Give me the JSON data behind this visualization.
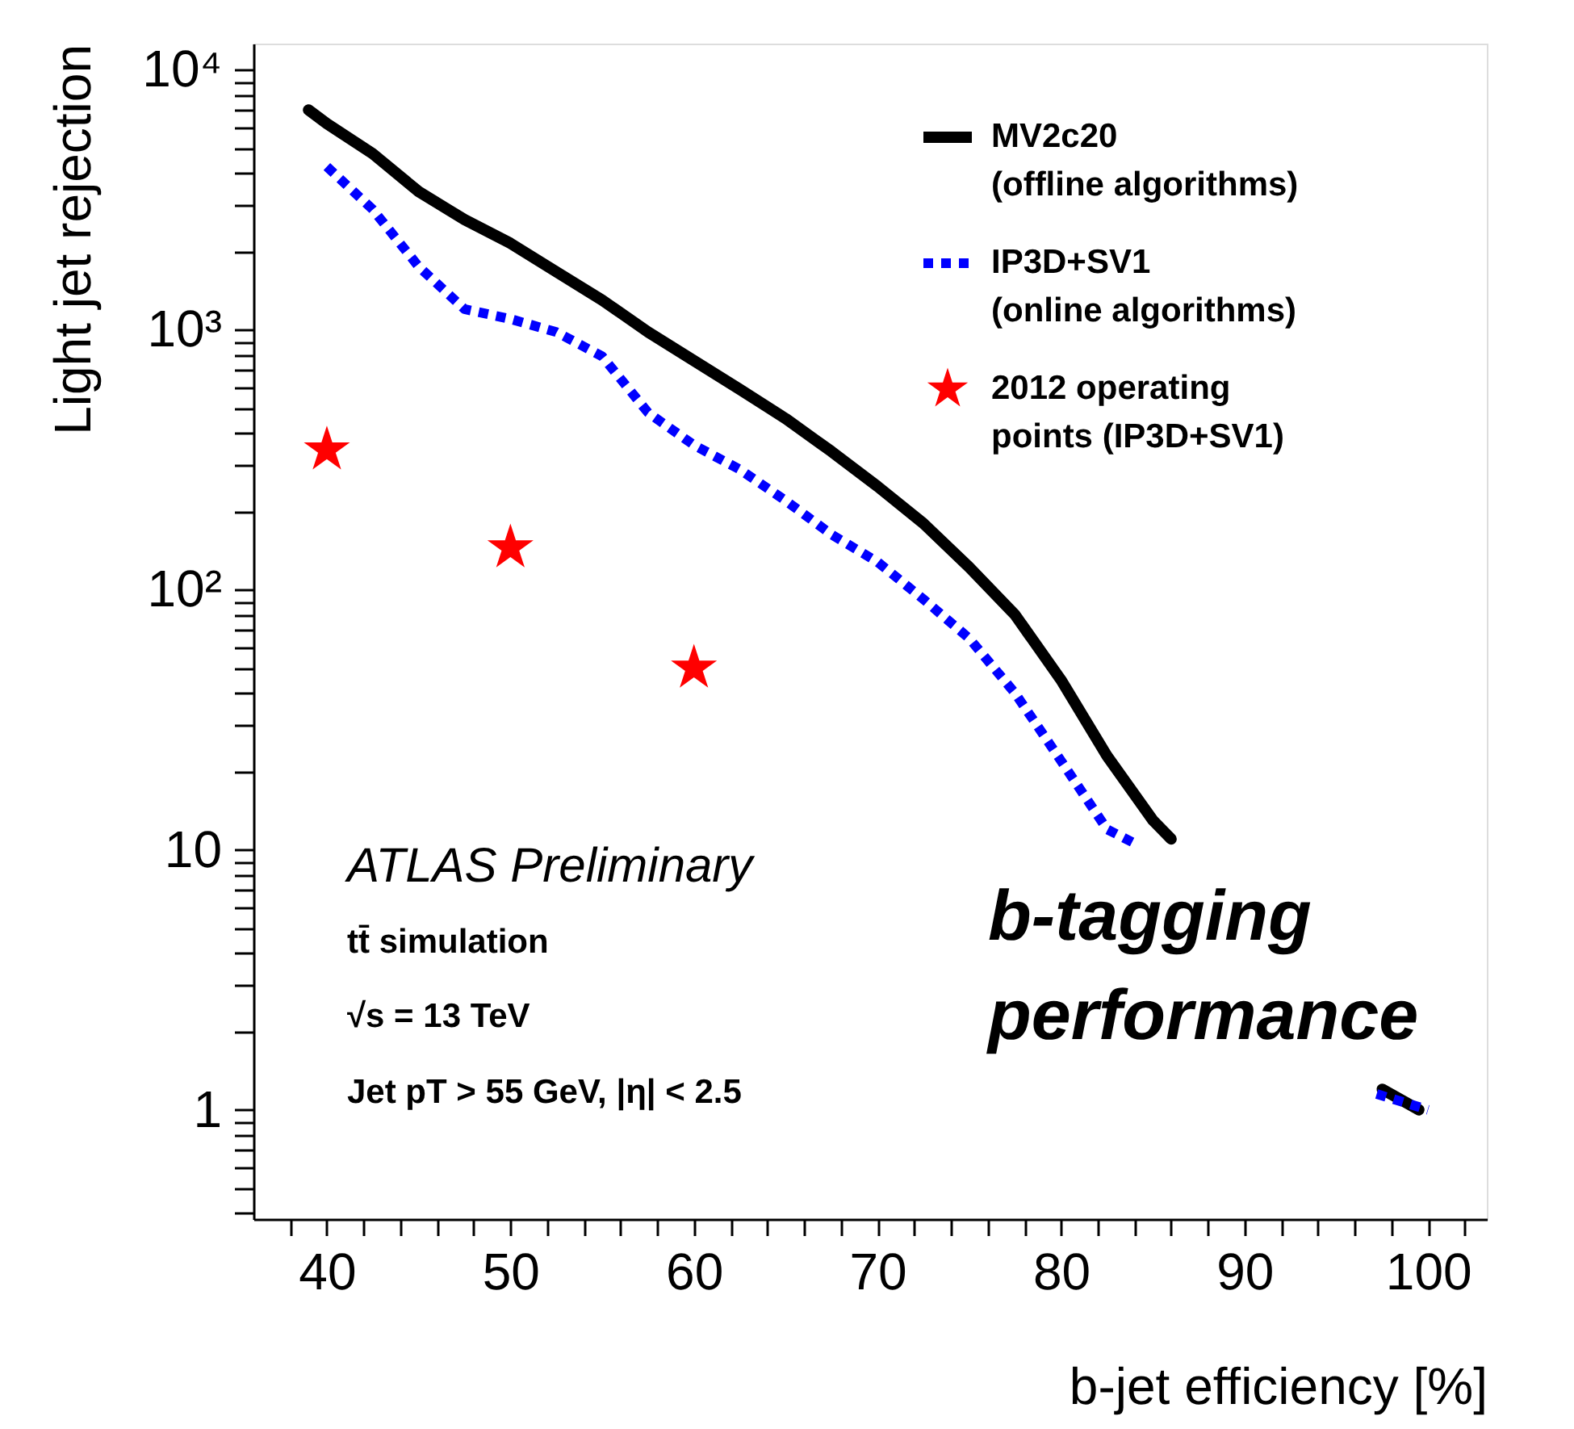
{
  "chart_data": {
    "type": "line",
    "xlabel": "b-jet efficiency [%]",
    "ylabel": "Light jet rejection",
    "log": true,
    "grid": false,
    "legend": "top right",
    "xlim": [
      36,
      103.2
    ],
    "ylim": [
      0.38,
      12600
    ],
    "xticks": [
      {
        "value": 38,
        "label": null
      },
      40,
      {
        "value": 42,
        "label": null
      },
      {
        "value": 44,
        "label": null
      },
      {
        "value": 46,
        "label": null
      },
      {
        "value": 48,
        "label": null
      },
      50,
      {
        "value": 52,
        "label": null
      },
      {
        "value": 54,
        "label": null
      },
      {
        "value": 56,
        "label": null
      },
      {
        "value": 58,
        "label": null
      },
      60,
      {
        "value": 62,
        "label": null
      },
      {
        "value": 64,
        "label": null
      },
      {
        "value": 66,
        "label": null
      },
      {
        "value": 68,
        "label": null
      },
      70,
      {
        "value": 72,
        "label": null
      },
      {
        "value": 74,
        "label": null
      },
      {
        "value": 76,
        "label": null
      },
      {
        "value": 78,
        "label": null
      },
      80,
      {
        "value": 82,
        "label": null
      },
      {
        "value": 84,
        "label": null
      },
      {
        "value": 86,
        "label": null
      },
      {
        "value": 88,
        "label": null
      },
      90,
      {
        "value": 92,
        "label": null
      },
      {
        "value": 94,
        "label": null
      },
      {
        "value": 96,
        "label": null
      },
      {
        "value": 98,
        "label": null
      },
      100,
      {
        "value": 102,
        "label": null
      }
    ],
    "yticks": [
      {
        "value": 0.4,
        "label": null
      },
      {
        "value": 0.5,
        "label": null
      },
      {
        "value": 0.6,
        "label": null
      },
      {
        "value": 0.7,
        "label": null
      },
      {
        "value": 0.8,
        "label": null
      },
      {
        "value": 0.9,
        "label": null
      },
      1,
      {
        "value": 2,
        "label": null
      },
      {
        "value": 3,
        "label": null
      },
      {
        "value": 4,
        "label": null
      },
      {
        "value": 5,
        "label": null
      },
      {
        "value": 6,
        "label": null
      },
      {
        "value": 7,
        "label": null
      },
      {
        "value": 8,
        "label": null
      },
      {
        "value": 9,
        "label": null
      },
      10,
      {
        "value": 20,
        "label": null
      },
      {
        "value": 30,
        "label": null
      },
      {
        "value": 40,
        "label": null
      },
      {
        "value": 50,
        "label": null
      },
      {
        "value": 60,
        "label": null
      },
      {
        "value": 70,
        "label": null
      },
      {
        "value": 80,
        "label": null
      },
      {
        "value": 90,
        "label": null
      },
      {
        "value": 100,
        "label": "10²"
      },
      {
        "value": 200,
        "label": null
      },
      {
        "value": 300,
        "label": null
      },
      {
        "value": 400,
        "label": null
      },
      {
        "value": 500,
        "label": null
      },
      {
        "value": 600,
        "label": null
      },
      {
        "value": 700,
        "label": null
      },
      {
        "value": 800,
        "label": null
      },
      {
        "value": 900,
        "label": null
      },
      {
        "value": 1000,
        "label": "10³"
      },
      {
        "value": 2000,
        "label": null
      },
      {
        "value": 3000,
        "label": null
      },
      {
        "value": 4000,
        "label": null
      },
      {
        "value": 5000,
        "label": null
      },
      {
        "value": 6000,
        "label": null
      },
      {
        "value": 7000,
        "label": null
      },
      {
        "value": 8000,
        "label": null
      },
      {
        "value": 9000,
        "label": null
      },
      {
        "value": 10000,
        "label": "10⁴"
      }
    ],
    "series": [
      {
        "name": "MV2c20\n(offline algorithms)",
        "type": "line",
        "line_style": "solid",
        "color": "#000000",
        "x": [
          39,
          40,
          42.5,
          45,
          47.5,
          50,
          52.5,
          55,
          57.5,
          60,
          62.5,
          65,
          67.5,
          70,
          72.5,
          75,
          77.5,
          80,
          82.5,
          85,
          86,
          90,
          97.5,
          99.5
        ],
        "values": [
          7000,
          6200,
          4750,
          3400,
          2650,
          2150,
          1670,
          1300,
          980,
          760,
          590,
          455,
          340,
          250,
          180,
          122,
          80,
          45,
          23,
          13,
          11,
          null,
          1.2,
          1.0
        ]
      },
      {
        "name": "IP3D+SV1\n(online algorithms)",
        "type": "line",
        "line_style": "dotted",
        "color": "#0000ff",
        "x": [
          40,
          42.5,
          45,
          47.5,
          50,
          52.5,
          55,
          57.5,
          60,
          62.5,
          65,
          67.5,
          70,
          72.5,
          75,
          77.5,
          80,
          82.5,
          84,
          90,
          97.2,
          100
        ],
        "values": [
          4240,
          2900,
          1750,
          1200,
          1100,
          980,
          790,
          480,
          360,
          290,
          220,
          163,
          128,
          92,
          65,
          40,
          22,
          12,
          10.6,
          null,
          1.15,
          1.0
        ]
      },
      {
        "name": "2012 operating\npoints (IP3D+SV1)",
        "type": "scatter",
        "marker": "star",
        "color": "#ff0000",
        "x": [
          40,
          50,
          60
        ],
        "values": [
          345,
          145,
          50
        ]
      }
    ],
    "annotations": [
      "ATLAS Preliminary",
      "tt̄ simulation",
      "√s = 13 TeV",
      "Jet pT > 55 GeV, |η| < 2.5",
      "b-tagging\nperformance"
    ]
  }
}
